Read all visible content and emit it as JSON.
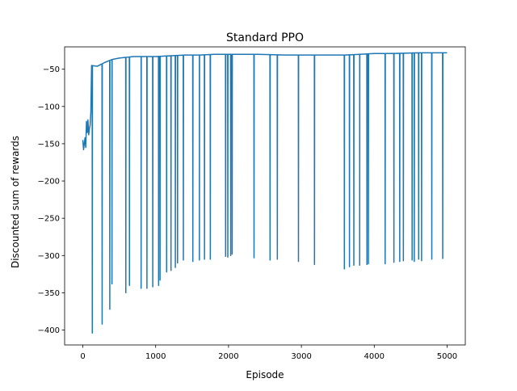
{
  "chart_data": {
    "type": "line",
    "title": "Standard PPO",
    "xlabel": "Episode",
    "ylabel": "Discounted sum of rewards",
    "xlim": [
      -250,
      5250
    ],
    "ylim": [
      -420,
      -20
    ],
    "xticks": [
      0,
      1000,
      2000,
      3000,
      4000,
      5000
    ],
    "yticks": [
      -400,
      -350,
      -300,
      -250,
      -200,
      -150,
      -100,
      -50
    ],
    "grid": false,
    "legend": "none",
    "line_color": "#1f77b4",
    "series": [
      {
        "baseline": [
          [
            0,
            -145
          ],
          [
            10,
            -158
          ],
          [
            20,
            -150
          ],
          [
            30,
            -142
          ],
          [
            40,
            -155
          ],
          [
            50,
            -120
          ],
          [
            60,
            -135
          ],
          [
            70,
            -118
          ],
          [
            80,
            -138
          ],
          [
            90,
            -130
          ],
          [
            100,
            -125
          ],
          [
            110,
            -108
          ],
          [
            120,
            -45
          ],
          [
            200,
            -46
          ],
          [
            300,
            -41
          ],
          [
            400,
            -37
          ],
          [
            500,
            -35
          ],
          [
            600,
            -34
          ],
          [
            700,
            -33
          ],
          [
            800,
            -33
          ],
          [
            1000,
            -33
          ],
          [
            1200,
            -32
          ],
          [
            1400,
            -31
          ],
          [
            1600,
            -31
          ],
          [
            1800,
            -30
          ],
          [
            2000,
            -30
          ],
          [
            2200,
            -30
          ],
          [
            2400,
            -30
          ],
          [
            2800,
            -31
          ],
          [
            3000,
            -31
          ],
          [
            3200,
            -31
          ],
          [
            3600,
            -31
          ],
          [
            3800,
            -30
          ],
          [
            4000,
            -29
          ],
          [
            4200,
            -29
          ],
          [
            4600,
            -28
          ],
          [
            5000,
            -28
          ]
        ],
        "dips": [
          [
            130,
            -404
          ],
          [
            265,
            -392
          ],
          [
            370,
            -372
          ],
          [
            400,
            -338
          ],
          [
            590,
            -350
          ],
          [
            640,
            -340
          ],
          [
            800,
            -344
          ],
          [
            880,
            -344
          ],
          [
            960,
            -342
          ],
          [
            1040,
            -340
          ],
          [
            1060,
            -333
          ],
          [
            1150,
            -322
          ],
          [
            1210,
            -320
          ],
          [
            1270,
            -316
          ],
          [
            1300,
            -310
          ],
          [
            1380,
            -306
          ],
          [
            1510,
            -308
          ],
          [
            1600,
            -306
          ],
          [
            1670,
            -305
          ],
          [
            1750,
            -305
          ],
          [
            1960,
            -301
          ],
          [
            1990,
            -302
          ],
          [
            2030,
            -300
          ],
          [
            2050,
            -298
          ],
          [
            2350,
            -303
          ],
          [
            2570,
            -306
          ],
          [
            2670,
            -305
          ],
          [
            2960,
            -308
          ],
          [
            3180,
            -312
          ],
          [
            3590,
            -318
          ],
          [
            3660,
            -315
          ],
          [
            3720,
            -313
          ],
          [
            3800,
            -313
          ],
          [
            3900,
            -312
          ],
          [
            3920,
            -311
          ],
          [
            4150,
            -311
          ],
          [
            4270,
            -309
          ],
          [
            4350,
            -308
          ],
          [
            4400,
            -307
          ],
          [
            4520,
            -306
          ],
          [
            4550,
            -308
          ],
          [
            4610,
            -305
          ],
          [
            4650,
            -307
          ],
          [
            4790,
            -305
          ],
          [
            4940,
            -304
          ]
        ]
      }
    ]
  }
}
